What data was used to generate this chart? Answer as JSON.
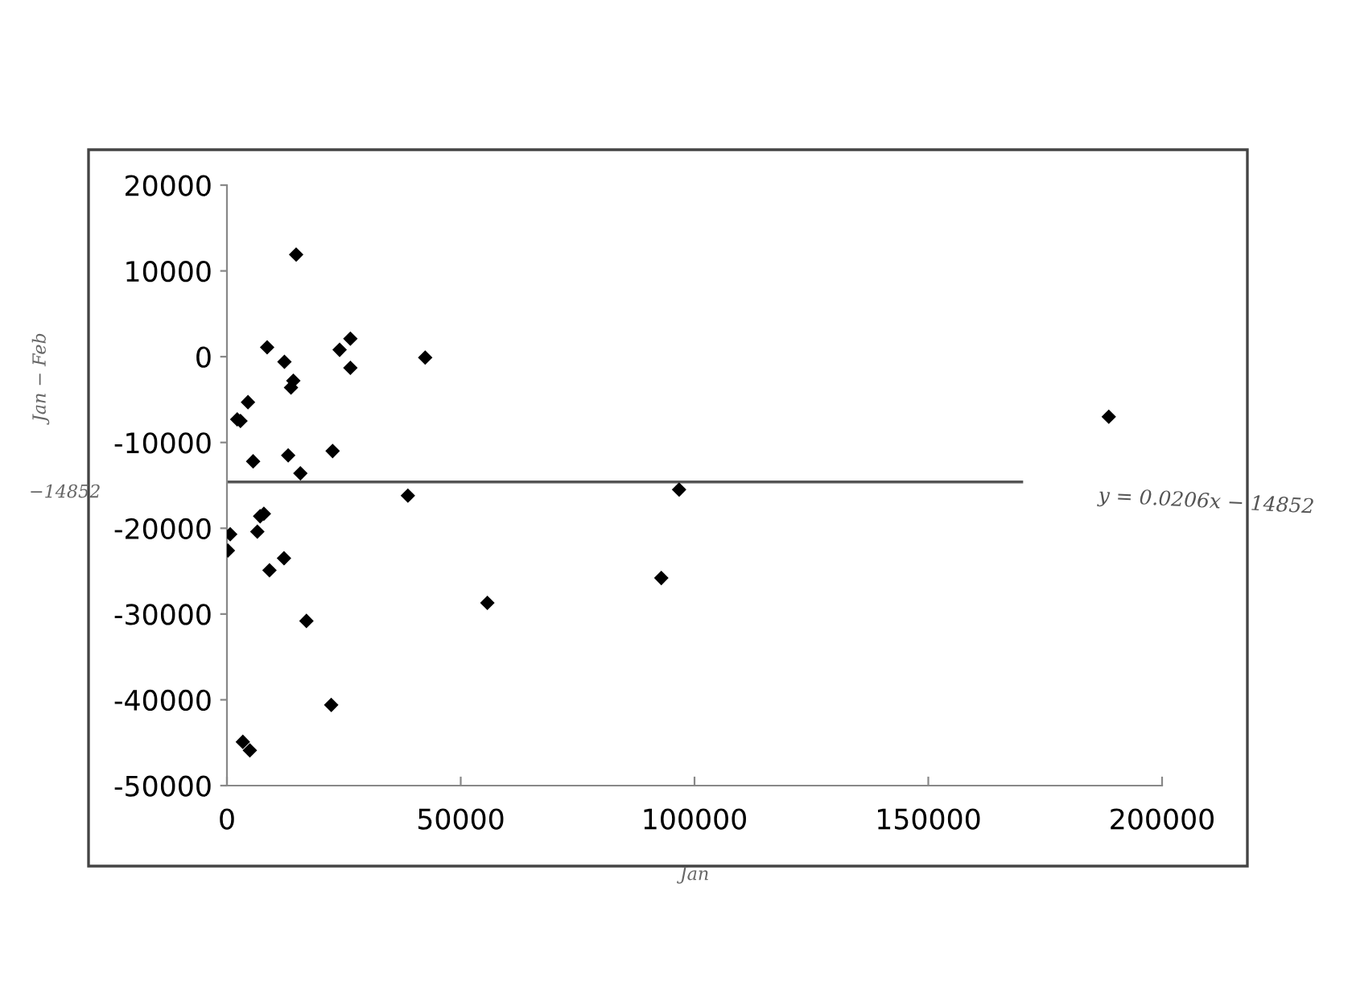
{
  "chart_data": {
    "type": "scatter",
    "xlabel": "Jan",
    "ylabel": "Jan − Feb",
    "xlim": [
      0,
      200000
    ],
    "xticks": [
      0,
      50000,
      100000,
      150000,
      200000
    ],
    "ylim": [
      -50000,
      20000
    ],
    "yticks": [
      -50000,
      -40000,
      -30000,
      -20000,
      -10000,
      0,
      10000,
      20000
    ],
    "grid": false,
    "legend": false,
    "marker": "diamond",
    "series": [
      {
        "color": "#000000",
        "x": [
          14800,
          8600,
          12300,
          24100,
          26400,
          26400,
          42400,
          14200,
          13700,
          4500,
          2200,
          2900,
          13100,
          22600,
          5600,
          15700,
          38700,
          96700,
          7900,
          7100,
          6500,
          700,
          200,
          12200,
          9100,
          92900,
          55700,
          17000,
          22300,
          3400,
          4900,
          188600
        ],
        "values": [
          11900,
          1100,
          -600,
          800,
          2100,
          -1300,
          -100,
          -2800,
          -3600,
          -5300,
          -7300,
          -7500,
          -11500,
          -11000,
          -12200,
          -13600,
          -16200,
          -15500,
          -18300,
          -18600,
          -20400,
          -20700,
          -22600,
          -23500,
          -24900,
          -25800,
          -28700,
          -30800,
          -40600,
          -44900,
          -45900,
          -7000
        ]
      },
      {
        "type": "line",
        "color": "#555555",
        "x": [
          0,
          170000
        ],
        "values": [
          -14600,
          -14600
        ],
        "marker": "none"
      }
    ],
    "annotations": [
      "y = 0.0206x − 14852",
      "−14852"
    ]
  }
}
